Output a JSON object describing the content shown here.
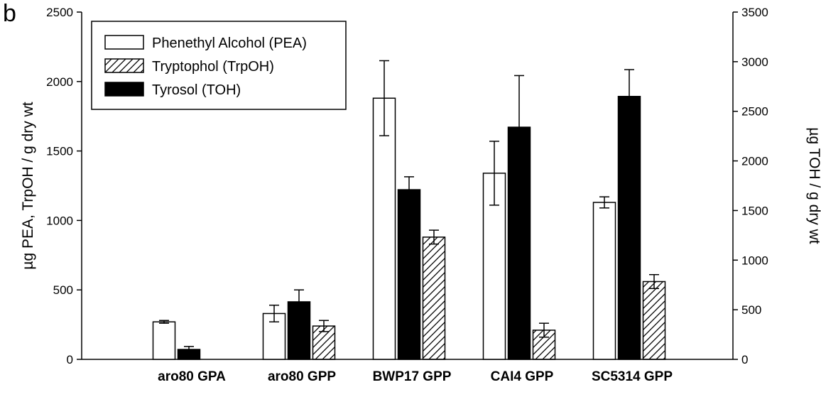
{
  "panel_label": "b",
  "chart_data": {
    "type": "bar",
    "categories": [
      "aro80 GPA",
      "aro80 GPP",
      "BWP17 GPP",
      "CAI4 GPP",
      "SC5314 GPP"
    ],
    "ylabel": "µg PEA, TrpOH / g dry wt",
    "y2label": "µg TOH / g dry wt",
    "ylim": [
      0,
      2500
    ],
    "y2lim": [
      0,
      3500
    ],
    "yticks": [
      0,
      500,
      1000,
      1500,
      2000,
      2500
    ],
    "y2ticks": [
      0,
      500,
      1000,
      1500,
      2000,
      2500,
      3000,
      3500
    ],
    "legend_position": "top-left",
    "grid": false,
    "series": [
      {
        "name": "Phenethyl Alcohol (PEA)",
        "axis": "left",
        "fill": "white",
        "values": [
          270,
          330,
          1880,
          1340,
          1130
        ],
        "errors": [
          10,
          60,
          270,
          230,
          40
        ]
      },
      {
        "name": "Tryptophol (TrpOH)",
        "axis": "left",
        "fill": "hatch",
        "values": [
          0,
          240,
          880,
          210,
          560
        ],
        "errors": [
          0,
          40,
          50,
          50,
          50
        ]
      },
      {
        "name": "Tyrosol (TOH)",
        "axis": "right",
        "fill": "black",
        "values": [
          100,
          580,
          1710,
          2340,
          2650
        ],
        "errors": [
          30,
          120,
          130,
          520,
          270
        ]
      }
    ]
  }
}
